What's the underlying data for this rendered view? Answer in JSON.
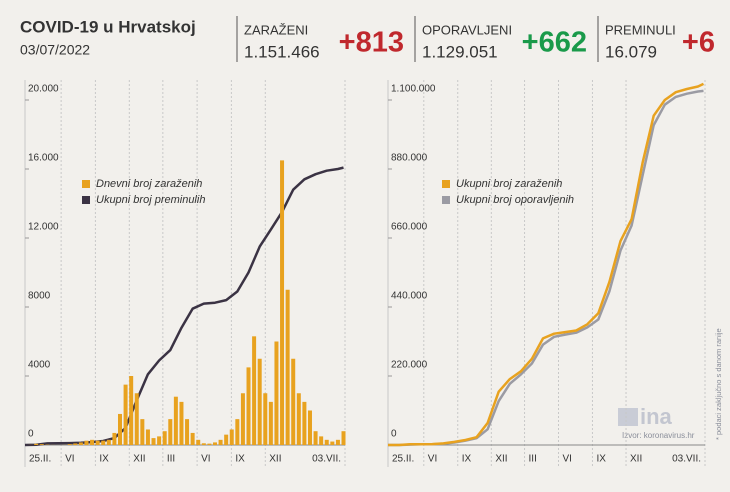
{
  "header": {
    "title": "COVID-19 u Hrvatskoj",
    "date": "03/07/2022",
    "stats": [
      {
        "label": "ZARAŽENI",
        "total": "1.151.466",
        "change": "+813",
        "color": "#c0282d"
      },
      {
        "label": "OPORAVLJENI",
        "total": "1.129.051",
        "change": "+662",
        "color": "#1a9a4a"
      },
      {
        "label": "PREMINULI",
        "total": "16.079",
        "change": "+6",
        "color": "#c0282d"
      }
    ]
  },
  "footer": {
    "logo": "ina",
    "source": "Izvor: koronavirus.hr",
    "note": "* podaci zaključno s danom ranije"
  },
  "chart_data": [
    {
      "type": "bar",
      "xlim": [
        0,
        859
      ],
      "xticks": [
        {
          "value": 0,
          "label": "25.II."
        },
        {
          "value": 97,
          "label": "VI"
        },
        {
          "value": 189,
          "label": "IX"
        },
        {
          "value": 280,
          "label": "XII"
        },
        {
          "value": 370,
          "label": "III"
        },
        {
          "value": 462,
          "label": "VI"
        },
        {
          "value": 554,
          "label": "IX"
        },
        {
          "value": 645,
          "label": "XII"
        },
        {
          "value": 859,
          "label": "03.VII."
        }
      ],
      "ylim": [
        0,
        20000
      ],
      "yticks": [
        0,
        4000,
        8000,
        {
          "value": 12000,
          "label": "12.000"
        },
        {
          "value": 16000,
          "label": "16.000"
        },
        {
          "value": 20000,
          "label": "20.000"
        }
      ],
      "series": [
        {
          "name": "Dnevni broj zaraženih",
          "type": "bar",
          "color": "#e8a21f",
          "x": [
            0,
            15,
            30,
            45,
            60,
            75,
            90,
            105,
            120,
            135,
            150,
            165,
            180,
            195,
            210,
            225,
            240,
            255,
            270,
            285,
            300,
            315,
            330,
            345,
            360,
            375,
            390,
            405,
            420,
            435,
            450,
            465,
            480,
            495,
            510,
            525,
            540,
            555,
            570,
            585,
            600,
            615,
            630,
            645,
            660,
            675,
            690,
            705,
            720,
            735,
            750,
            765,
            780,
            795,
            810,
            825,
            840,
            855
          ],
          "values": [
            0,
            5,
            70,
            50,
            20,
            5,
            2,
            5,
            50,
            90,
            150,
            250,
            300,
            250,
            250,
            300,
            700,
            1800,
            3500,
            4000,
            3000,
            1500,
            900,
            400,
            500,
            800,
            1500,
            2800,
            2500,
            1500,
            700,
            300,
            100,
            80,
            150,
            300,
            600,
            900,
            1500,
            3000,
            4500,
            6300,
            5000,
            3000,
            2500,
            6000,
            16500,
            9000,
            5000,
            3000,
            2500,
            2000,
            800,
            500,
            300,
            200,
            300,
            800
          ]
        },
        {
          "name": "Ukupni broj preminulih",
          "type": "line",
          "color": "#3b3344",
          "x": [
            0,
            30,
            60,
            90,
            120,
            150,
            180,
            210,
            240,
            270,
            300,
            330,
            360,
            390,
            420,
            450,
            480,
            510,
            540,
            570,
            600,
            630,
            660,
            690,
            720,
            750,
            780,
            810,
            840,
            855
          ],
          "values": [
            0,
            20,
            90,
            105,
            110,
            130,
            170,
            230,
            400,
            1000,
            2600,
            4100,
            4900,
            5500,
            6800,
            7900,
            8200,
            8250,
            8400,
            8900,
            10000,
            11500,
            12500,
            13500,
            14800,
            15400,
            15700,
            15900,
            16000,
            16079
          ]
        }
      ]
    },
    {
      "type": "line",
      "xlim": [
        0,
        859
      ],
      "xticks": [
        {
          "value": 0,
          "label": "25.II."
        },
        {
          "value": 97,
          "label": "VI"
        },
        {
          "value": 189,
          "label": "IX"
        },
        {
          "value": 280,
          "label": "XII"
        },
        {
          "value": 370,
          "label": "III"
        },
        {
          "value": 462,
          "label": "VI"
        },
        {
          "value": 554,
          "label": "IX"
        },
        {
          "value": 645,
          "label": "XII"
        },
        {
          "value": 859,
          "label": "03.VII."
        }
      ],
      "ylim": [
        0,
        1100000
      ],
      "yticks": [
        0,
        {
          "value": 220000,
          "label": "220.000"
        },
        {
          "value": 440000,
          "label": "440.000"
        },
        {
          "value": 660000,
          "label": "660.000"
        },
        {
          "value": 880000,
          "label": "880.000"
        },
        {
          "value": 1100000,
          "label": "1.100.000"
        }
      ],
      "series": [
        {
          "name": "Ukupni broj zaraženih",
          "type": "line",
          "color": "#e8a21f",
          "x": [
            0,
            30,
            60,
            90,
            120,
            150,
            180,
            210,
            240,
            270,
            300,
            330,
            360,
            390,
            420,
            450,
            480,
            510,
            540,
            570,
            600,
            630,
            660,
            690,
            720,
            750,
            780,
            810,
            840,
            855
          ],
          "values": [
            0,
            100,
            2100,
            2250,
            3000,
            5000,
            10000,
            16000,
            25000,
            70000,
            170000,
            210000,
            235000,
            275000,
            340000,
            355000,
            360000,
            365000,
            385000,
            420000,
            520000,
            650000,
            720000,
            900000,
            1050000,
            1100000,
            1125000,
            1135000,
            1143000,
            1151466
          ]
        },
        {
          "name": "Ukupni broj oporavljenih",
          "type": "line",
          "color": "#9b9ba3",
          "x": [
            0,
            30,
            60,
            90,
            120,
            150,
            180,
            210,
            240,
            270,
            300,
            330,
            360,
            390,
            420,
            450,
            480,
            510,
            540,
            570,
            600,
            630,
            660,
            690,
            720,
            750,
            780,
            810,
            840,
            855
          ],
          "values": [
            0,
            50,
            1200,
            2100,
            2300,
            4000,
            8000,
            14000,
            22000,
            50000,
            140000,
            195000,
            225000,
            260000,
            320000,
            345000,
            352000,
            358000,
            375000,
            400000,
            490000,
            620000,
            700000,
            860000,
            1020000,
            1085000,
            1110000,
            1120000,
            1127000,
            1129051
          ]
        }
      ]
    }
  ]
}
